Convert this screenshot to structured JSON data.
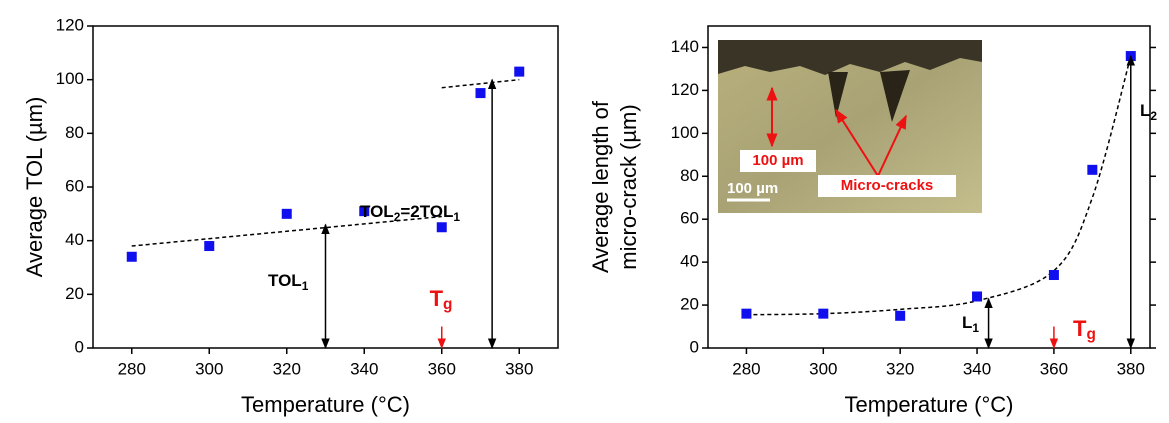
{
  "chart_data": [
    {
      "type": "scatter",
      "x": [
        280,
        300,
        320,
        340,
        360,
        370,
        380
      ],
      "values": [
        34,
        38,
        50,
        51,
        45,
        95,
        103
      ],
      "color": "#1010ee",
      "trend_lines": [
        {
          "x": [
            280,
            360
          ],
          "values": [
            38,
            49
          ]
        },
        {
          "x": [
            360,
            380
          ],
          "values": [
            97,
            100
          ]
        }
      ],
      "xlabel": "Temperature (°C)",
      "ylabel": [
        "Average TOL (µm)"
      ],
      "xlim": [
        270,
        390
      ],
      "ylim": [
        0,
        120
      ],
      "xticks": [
        280,
        300,
        320,
        340,
        360,
        380
      ],
      "yticks": [
        0,
        20,
        40,
        60,
        80,
        100,
        120
      ],
      "annotations": [
        {
          "label_parts": [
            "TOL",
            "1"
          ],
          "x": 330,
          "y": [
            0,
            46
          ],
          "color": "#000000",
          "double": true
        },
        {
          "label_parts": [
            "TOL",
            "2",
            "=2TOL",
            "1"
          ],
          "x": 373,
          "y": [
            0,
            100
          ],
          "color": "#000000",
          "double": true
        },
        {
          "label_parts": [
            "T",
            "g"
          ],
          "x": 360,
          "y": [
            0,
            8
          ],
          "color": "#ee1111",
          "double": false
        }
      ]
    },
    {
      "type": "scatter",
      "x": [
        280,
        300,
        320,
        340,
        360,
        370,
        380
      ],
      "values": [
        16,
        16,
        15,
        24,
        34,
        83,
        136
      ],
      "color": "#1010ee",
      "trend_lines": [
        {
          "x": [
            280,
            300,
            320,
            340,
            360,
            370,
            380
          ],
          "values": [
            15.5,
            16,
            18,
            22,
            36,
            70,
            136
          ]
        }
      ],
      "xlabel": "Temperature (°C)",
      "ylabel": [
        "Average length of",
        "micro-crack (µm)"
      ],
      "xlim": [
        270,
        385
      ],
      "ylim": [
        0,
        150
      ],
      "xticks": [
        280,
        300,
        320,
        340,
        360,
        380
      ],
      "yticks": [
        0,
        20,
        40,
        60,
        80,
        100,
        120,
        140
      ],
      "annotations": [
        {
          "label_parts": [
            "L",
            "1"
          ],
          "x": 343,
          "y": [
            0,
            23
          ],
          "color": "#000000",
          "double": true
        },
        {
          "label_parts": [
            "L",
            "2"
          ],
          "x": 380,
          "y": [
            0,
            136
          ],
          "color": "#000000",
          "double": true
        },
        {
          "label_parts": [
            "T",
            "g"
          ],
          "x": 360,
          "y": [
            0,
            10
          ],
          "color": "#ee1111",
          "double": false
        }
      ],
      "inset_labels": [
        "100 µm",
        "Micro-cracks",
        "100 µm"
      ]
    }
  ]
}
